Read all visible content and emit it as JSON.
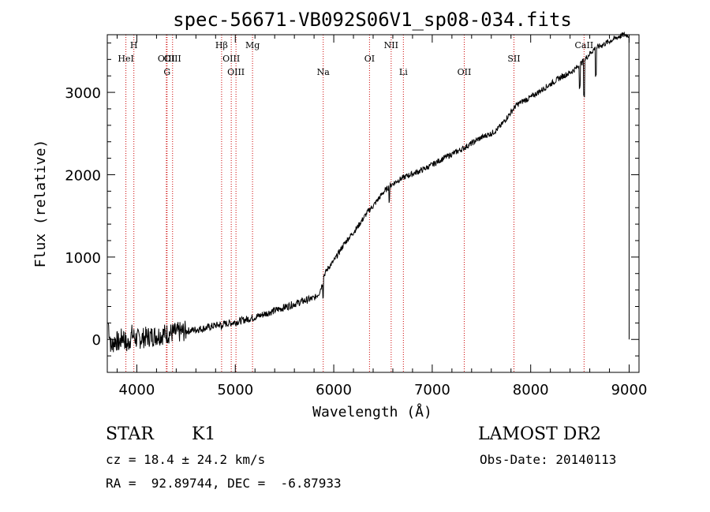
{
  "chart_data": {
    "type": "line",
    "title": "spec-56671-VB092S06V1_sp08-034.fits",
    "xlabel": "Wavelength (Å)",
    "ylabel": "Flux (relative)",
    "xlim": [
      3700,
      9100
    ],
    "ylim": [
      -400,
      3700
    ],
    "xticks": [
      4000,
      5000,
      6000,
      7000,
      8000,
      9000
    ],
    "yticks": [
      0,
      1000,
      2000,
      3000
    ],
    "grid": false,
    "line_color": "#000000",
    "marker_color": "#cc0000",
    "series": [
      {
        "x": [
          3710,
          3740,
          3780,
          3820,
          3860,
          3900,
          3950,
          4000,
          4100,
          4200,
          4300,
          4400,
          4500,
          4600,
          4700,
          4800,
          4900,
          5000,
          5100,
          5200,
          5300,
          5400,
          5500,
          5600,
          5700,
          5800,
          5850,
          5880,
          5900,
          5950,
          6000,
          6050,
          6100,
          6150,
          6200,
          6250,
          6300,
          6350,
          6400,
          6450,
          6500,
          6550,
          6600,
          6650,
          6700,
          6750,
          6800,
          6900,
          7000,
          7100,
          7200,
          7300,
          7400,
          7450,
          7500,
          7550,
          7600,
          7650,
          7700,
          7750,
          7800,
          7850,
          7900,
          8000,
          8100,
          8200,
          8300,
          8400,
          8450,
          8500,
          8550,
          8600,
          8650,
          8700,
          8750,
          8800,
          8850,
          8900,
          8950,
          9000,
          9010
        ],
        "y": [
          200,
          -100,
          0,
          -50,
          50,
          -80,
          60,
          0,
          30,
          50,
          70,
          80,
          100,
          120,
          140,
          170,
          190,
          210,
          240,
          270,
          310,
          350,
          390,
          430,
          470,
          500,
          560,
          660,
          780,
          880,
          950,
          1050,
          1150,
          1230,
          1300,
          1380,
          1470,
          1560,
          1620,
          1700,
          1780,
          1840,
          1890,
          1930,
          1960,
          1990,
          2010,
          2060,
          2120,
          2190,
          2250,
          2310,
          2380,
          2420,
          2450,
          2480,
          2500,
          2540,
          2600,
          2680,
          2760,
          2840,
          2880,
          2940,
          3020,
          3100,
          3180,
          3240,
          3280,
          3340,
          3400,
          3470,
          3530,
          3560,
          3590,
          3620,
          3650,
          3680,
          3700,
          3690,
          0
        ]
      }
    ],
    "lines": [
      {
        "label": "HeI",
        "x": 3889,
        "row": 2
      },
      {
        "label": "H",
        "x": 3970,
        "row": 1
      },
      {
        "label": "OIII",
        "x": 4300,
        "row": 2
      },
      {
        "label": "G",
        "x": 4307,
        "row": 3
      },
      {
        "label": "OIII",
        "x": 4363,
        "row": 2
      },
      {
        "label": "Hβ",
        "x": 4861,
        "row": 1
      },
      {
        "label": "OIII",
        "x": 4959,
        "row": 2
      },
      {
        "label": "OIII",
        "x": 5007,
        "row": 3
      },
      {
        "label": "Mg",
        "x": 5175,
        "row": 1
      },
      {
        "label": "Na",
        "x": 5893,
        "row": 3
      },
      {
        "label": "OI",
        "x": 6363,
        "row": 2
      },
      {
        "label": "NII",
        "x": 6583,
        "row": 1
      },
      {
        "label": "Li",
        "x": 6707,
        "row": 3
      },
      {
        "label": "OII",
        "x": 7325,
        "row": 3
      },
      {
        "label": "SII",
        "x": 7830,
        "row": 2
      },
      {
        "label": "CaII",
        "x": 8542,
        "row": 1
      }
    ]
  },
  "info": {
    "class": "STAR",
    "subclass": "K1",
    "survey": "LAMOST DR2",
    "cz": "cz = 18.4 ± 24.2 km/s",
    "obsdate": "Obs-Date: 20140113",
    "radec": "RA =  92.89744, DEC =  -6.87933"
  }
}
